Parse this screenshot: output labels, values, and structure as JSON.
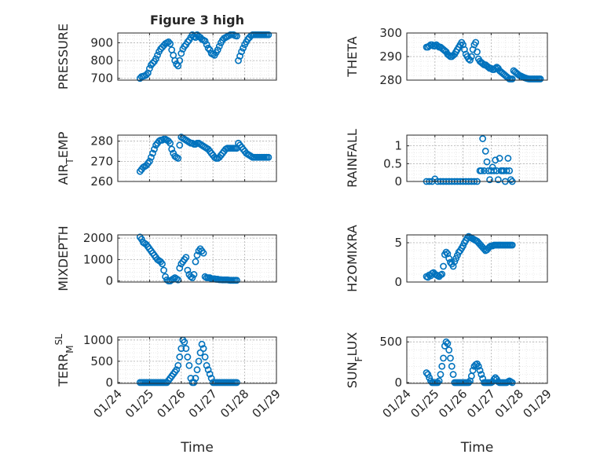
{
  "figure": {
    "title": "Figure 3 high"
  },
  "chart_data": [
    {
      "id": "pressure",
      "type": "scatter",
      "title": "Figure 3 high",
      "ylabel": "PRESSURE",
      "ylabel_sub": "",
      "ylim": [
        690,
        955
      ],
      "yticks": [
        700,
        800,
        900
      ],
      "ytick_labels": [
        "700",
        "800",
        "900"
      ],
      "grid": true,
      "x_is_time": true,
      "x": [
        0.7,
        0.75,
        0.8,
        0.85,
        0.9,
        0.95,
        1.0,
        1.05,
        1.1,
        1.15,
        1.2,
        1.25,
        1.3,
        1.35,
        1.4,
        1.45,
        1.5,
        1.55,
        1.6,
        1.65,
        1.7,
        1.75,
        1.8,
        1.85,
        1.9,
        1.95,
        2.0,
        2.05,
        2.1,
        2.15,
        2.2,
        2.25,
        2.3,
        2.35,
        2.4,
        2.45,
        2.5,
        2.55,
        2.6,
        2.65,
        2.7,
        2.75,
        2.8,
        2.85,
        2.9,
        2.95,
        3.0,
        3.05,
        3.1,
        3.15,
        3.2,
        3.25,
        3.3,
        3.35,
        3.4,
        3.45,
        3.5,
        3.55,
        3.6,
        3.65,
        3.7,
        3.75,
        3.8,
        3.85,
        3.9,
        3.95,
        4.0,
        4.05,
        4.1,
        4.15,
        4.2,
        4.25,
        4.3,
        4.35,
        4.4,
        4.45,
        4.5,
        4.55,
        4.6,
        4.65,
        4.7,
        4.75
      ],
      "values": [
        700,
        710,
        712,
        715,
        720,
        730,
        755,
        775,
        785,
        795,
        810,
        830,
        850,
        865,
        875,
        885,
        895,
        900,
        905,
        895,
        860,
        830,
        800,
        780,
        770,
        800,
        840,
        865,
        880,
        890,
        905,
        915,
        930,
        945,
        935,
        930,
        945,
        935,
        930,
        920,
        915,
        910,
        890,
        870,
        860,
        840,
        835,
        830,
        845,
        860,
        880,
        900,
        915,
        925,
        930,
        935,
        940,
        945,
        945,
        945,
        940,
        938,
        800,
        825,
        850,
        870,
        890,
        905,
        920,
        930,
        940,
        945,
        945,
        945,
        945,
        945,
        945,
        945,
        945,
        945,
        945,
        945
      ]
    },
    {
      "id": "theta",
      "type": "scatter",
      "ylabel": "THETA",
      "ylabel_sub": "",
      "ylim": [
        280,
        300
      ],
      "yticks": [
        280,
        290,
        300
      ],
      "ytick_labels": [
        "280",
        "290",
        "300"
      ],
      "grid": true,
      "x_is_time": true,
      "x": [
        0.7,
        0.75,
        0.8,
        0.85,
        0.9,
        0.95,
        1.0,
        1.05,
        1.1,
        1.15,
        1.2,
        1.25,
        1.3,
        1.35,
        1.4,
        1.45,
        1.5,
        1.55,
        1.6,
        1.65,
        1.7,
        1.75,
        1.8,
        1.85,
        1.9,
        1.95,
        2.0,
        2.05,
        2.1,
        2.15,
        2.2,
        2.25,
        2.3,
        2.35,
        2.4,
        2.45,
        2.5,
        2.55,
        2.6,
        2.65,
        2.7,
        2.75,
        2.8,
        2.85,
        2.9,
        2.95,
        3.0,
        3.05,
        3.1,
        3.15,
        3.2,
        3.25,
        3.3,
        3.35,
        3.4,
        3.45,
        3.5,
        3.55,
        3.6,
        3.65,
        3.7,
        3.75,
        3.8,
        3.85,
        3.9,
        3.95,
        4.0,
        4.05,
        4.1,
        4.15,
        4.2,
        4.25,
        4.3,
        4.35,
        4.4,
        4.45,
        4.5,
        4.55,
        4.6,
        4.65,
        4.7,
        4.75
      ],
      "values": [
        294,
        294,
        294.5,
        295,
        295,
        294.5,
        294.5,
        295,
        294.5,
        294,
        294,
        293.5,
        293,
        292.5,
        292,
        291,
        290.5,
        290,
        290,
        290.5,
        291,
        292,
        293,
        294,
        295,
        296,
        295,
        293,
        291,
        290,
        289,
        288.5,
        290,
        293,
        295,
        296,
        292,
        289,
        288,
        287.5,
        287,
        286.5,
        286.5,
        286,
        285.5,
        285,
        285,
        284.5,
        284.5,
        285,
        285.5,
        285,
        284,
        283.5,
        283,
        282.5,
        282,
        281.5,
        281,
        280.5,
        280.5,
        280.5,
        284,
        283.5,
        283,
        282.5,
        282,
        281.8,
        281.5,
        281.2,
        281,
        280.8,
        280.6,
        280.5,
        280.5,
        280.5,
        280.5,
        280.5,
        280.5,
        280.5,
        280.5,
        280.5
      ]
    },
    {
      "id": "airtemp",
      "type": "scatter",
      "ylabel": "AIR",
      "ylabel_sub": "T",
      "ylabel_suffix": "EMP",
      "ylim": [
        260,
        283
      ],
      "yticks": [
        260,
        270,
        280
      ],
      "ytick_labels": [
        "260",
        "270",
        "280"
      ],
      "grid": true,
      "x_is_time": true,
      "x": [
        0.7,
        0.75,
        0.8,
        0.85,
        0.9,
        0.95,
        1.0,
        1.05,
        1.1,
        1.15,
        1.2,
        1.25,
        1.3,
        1.35,
        1.4,
        1.45,
        1.5,
        1.55,
        1.6,
        1.65,
        1.7,
        1.75,
        1.8,
        1.85,
        1.9,
        1.95,
        2.0,
        2.05,
        2.1,
        2.15,
        2.2,
        2.25,
        2.3,
        2.35,
        2.4,
        2.45,
        2.5,
        2.55,
        2.6,
        2.65,
        2.7,
        2.75,
        2.8,
        2.85,
        2.9,
        2.95,
        3.0,
        3.05,
        3.1,
        3.15,
        3.2,
        3.25,
        3.3,
        3.35,
        3.4,
        3.45,
        3.5,
        3.55,
        3.6,
        3.65,
        3.7,
        3.75,
        3.8,
        3.85,
        3.9,
        3.95,
        4.0,
        4.05,
        4.1,
        4.15,
        4.2,
        4.25,
        4.3,
        4.35,
        4.4,
        4.45,
        4.5,
        4.55,
        4.6,
        4.65,
        4.7,
        4.75
      ],
      "values": [
        265,
        266,
        267,
        267.5,
        268,
        269,
        270,
        272,
        274,
        276,
        278,
        279,
        280,
        280.5,
        280.5,
        281,
        281,
        280.5,
        280,
        279,
        276,
        274,
        272.5,
        272,
        271.5,
        278,
        282,
        281.5,
        281,
        280.5,
        280,
        279.5,
        279,
        279,
        278.5,
        278.5,
        279,
        279,
        278.5,
        278,
        277.5,
        277,
        276.5,
        276,
        275,
        274,
        273,
        272,
        271.5,
        271.5,
        272,
        273,
        274,
        275,
        276,
        276.5,
        276.5,
        276.5,
        276.5,
        276.5,
        276.5,
        276.5,
        279,
        278,
        277,
        276,
        275,
        274,
        273.5,
        273,
        272.5,
        272,
        272,
        272,
        272,
        272,
        272,
        272,
        272,
        272,
        272,
        272
      ]
    },
    {
      "id": "rainfall",
      "type": "scatter",
      "ylabel": "RAINFALL",
      "ylabel_sub": "",
      "ylim": [
        0,
        1.3
      ],
      "yticks": [
        0,
        0.5,
        1
      ],
      "ytick_labels": [
        "0",
        "0.5",
        "1"
      ],
      "grid": true,
      "x_is_time": true,
      "x": [
        0.7,
        0.8,
        0.9,
        1.0,
        1.1,
        1.2,
        1.3,
        1.4,
        1.5,
        1.6,
        1.7,
        1.8,
        1.9,
        2.0,
        2.1,
        2.2,
        2.3,
        2.4,
        2.5,
        2.6,
        2.65,
        2.7,
        2.75,
        2.8,
        2.85,
        2.9,
        2.95,
        3.0,
        3.05,
        3.1,
        3.15,
        3.2,
        3.25,
        3.3,
        3.35,
        3.4,
        3.45,
        3.5,
        3.55,
        3.6,
        3.65,
        3.7,
        3.75
      ],
      "values": [
        0,
        0,
        0,
        0.07,
        0,
        0,
        0,
        0,
        0,
        0,
        0,
        0,
        0,
        0,
        0,
        0,
        0,
        0,
        0,
        0.3,
        0.3,
        1.2,
        0.3,
        0.85,
        0.55,
        0.3,
        0.05,
        0.3,
        0.4,
        0.3,
        0.6,
        0.3,
        0.05,
        0.65,
        0.3,
        0.3,
        0.3,
        0,
        0.3,
        0.65,
        0.3,
        0.05,
        0
      ]
    },
    {
      "id": "mixdepth",
      "type": "scatter",
      "ylabel": "MIXDEPTH",
      "ylabel_sub": "",
      "ylim": [
        -50,
        2150
      ],
      "yticks": [
        0,
        1000,
        2000
      ],
      "ytick_labels": [
        "0",
        "1000",
        "2000"
      ],
      "grid": true,
      "x_is_time": true,
      "x": [
        0.7,
        0.75,
        0.8,
        0.85,
        0.9,
        0.95,
        1.0,
        1.05,
        1.1,
        1.15,
        1.2,
        1.25,
        1.3,
        1.35,
        1.4,
        1.45,
        1.5,
        1.55,
        1.6,
        1.65,
        1.7,
        1.75,
        1.8,
        1.85,
        1.9,
        1.95,
        2.0,
        2.05,
        2.1,
        2.15,
        2.2,
        2.25,
        2.3,
        2.35,
        2.4,
        2.45,
        2.5,
        2.55,
        2.6,
        2.65,
        2.7,
        2.75,
        2.8,
        2.85,
        2.9,
        2.95,
        3.0,
        3.05,
        3.1,
        3.15,
        3.2,
        3.25,
        3.3,
        3.35,
        3.4,
        3.45,
        3.5,
        3.55,
        3.6,
        3.65,
        3.7,
        3.75
      ],
      "values": [
        2050,
        1950,
        1800,
        1750,
        1700,
        1600,
        1500,
        1400,
        1300,
        1200,
        1100,
        1000,
        950,
        900,
        800,
        500,
        200,
        50,
        0,
        0,
        50,
        100,
        150,
        100,
        50,
        600,
        800,
        900,
        1000,
        1100,
        500,
        300,
        200,
        150,
        300,
        900,
        1200,
        1400,
        1500,
        1400,
        1300,
        200,
        150,
        150,
        150,
        100,
        100,
        100,
        80,
        80,
        60,
        60,
        50,
        50,
        50,
        50,
        40,
        30,
        30,
        30,
        30,
        30
      ]
    },
    {
      "id": "h2omixra",
      "type": "scatter",
      "ylabel": "H2OMIXRA",
      "ylabel_sub": "",
      "ylim": [
        0,
        6
      ],
      "yticks": [
        0,
        5
      ],
      "ytick_labels": [
        "0",
        "5"
      ],
      "grid": true,
      "x_is_time": true,
      "x": [
        0.7,
        0.75,
        0.8,
        0.85,
        0.9,
        0.95,
        1.0,
        1.05,
        1.1,
        1.15,
        1.2,
        1.25,
        1.3,
        1.35,
        1.4,
        1.45,
        1.5,
        1.55,
        1.6,
        1.65,
        1.7,
        1.75,
        1.8,
        1.85,
        1.9,
        1.95,
        2.0,
        2.05,
        2.1,
        2.15,
        2.2,
        2.25,
        2.3,
        2.35,
        2.4,
        2.45,
        2.5,
        2.55,
        2.6,
        2.65,
        2.7,
        2.75,
        2.8,
        2.85,
        2.9,
        2.95,
        3.0,
        3.05,
        3.1,
        3.15,
        3.2,
        3.25,
        3.3,
        3.35,
        3.4,
        3.45,
        3.5,
        3.55,
        3.6,
        3.65,
        3.7,
        3.75
      ],
      "values": [
        0.7,
        0.6,
        0.9,
        0.8,
        1.1,
        1.2,
        1.0,
        0.9,
        0.8,
        0.7,
        0.9,
        1.0,
        2.0,
        3.5,
        3.8,
        3.6,
        3.0,
        2.5,
        2.3,
        2.0,
        2.6,
        3.0,
        3.4,
        3.8,
        4.0,
        4.3,
        4.6,
        5.0,
        5.3,
        5.6,
        5.8,
        5.7,
        5.6,
        5.5,
        5.4,
        5.3,
        5.2,
        5.0,
        4.8,
        4.6,
        4.4,
        4.2,
        4.0,
        4.1,
        4.3,
        4.5,
        4.6,
        4.6,
        4.7,
        4.7,
        4.7,
        4.7,
        4.7,
        4.7,
        4.7,
        4.7,
        4.7,
        4.7,
        4.7,
        4.7,
        4.7,
        4.7
      ]
    },
    {
      "id": "terrmsl",
      "type": "scatter",
      "ylabel": "TERR",
      "ylabel_sub": "M",
      "ylabel_sup": "SL",
      "ylim": [
        -20,
        1070
      ],
      "yticks": [
        0,
        500,
        1000
      ],
      "ytick_labels": [
        "0",
        "500",
        "1000"
      ],
      "grid": true,
      "x_is_time": true,
      "xlabel": "Time",
      "x": [
        0.7,
        0.75,
        0.8,
        0.85,
        0.9,
        0.95,
        1.0,
        1.05,
        1.1,
        1.15,
        1.2,
        1.25,
        1.3,
        1.35,
        1.4,
        1.45,
        1.5,
        1.55,
        1.6,
        1.65,
        1.7,
        1.75,
        1.8,
        1.85,
        1.9,
        1.95,
        2.0,
        2.05,
        2.1,
        2.15,
        2.2,
        2.25,
        2.3,
        2.35,
        2.4,
        2.45,
        2.5,
        2.55,
        2.6,
        2.65,
        2.7,
        2.75,
        2.8,
        2.85,
        2.9,
        2.95,
        3.0,
        3.05,
        3.1,
        3.15,
        3.2,
        3.25,
        3.3,
        3.35,
        3.4,
        3.45,
        3.5,
        3.55,
        3.6,
        3.65,
        3.7,
        3.75
      ],
      "values": [
        0,
        0,
        0,
        0,
        0,
        0,
        0,
        0,
        0,
        0,
        0,
        0,
        0,
        0,
        0,
        0,
        0,
        0,
        50,
        100,
        150,
        200,
        250,
        300,
        400,
        600,
        800,
        1000,
        950,
        800,
        600,
        400,
        100,
        0,
        0,
        100,
        300,
        500,
        700,
        900,
        800,
        600,
        400,
        300,
        200,
        100,
        0,
        0,
        0,
        0,
        0,
        0,
        0,
        0,
        0,
        0,
        0,
        0,
        0,
        0,
        0,
        0
      ]
    },
    {
      "id": "sunflux",
      "type": "scatter",
      "ylabel": "SUN",
      "ylabel_sub": "F",
      "ylabel_suffix": "LUX",
      "ylim": [
        -10,
        560
      ],
      "yticks": [
        0,
        500
      ],
      "ytick_labels": [
        "0",
        "500"
      ],
      "grid": true,
      "x_is_time": true,
      "xlabel": "Time",
      "x": [
        0.7,
        0.75,
        0.8,
        0.85,
        0.9,
        0.95,
        1.0,
        1.05,
        1.1,
        1.15,
        1.2,
        1.25,
        1.3,
        1.35,
        1.4,
        1.45,
        1.5,
        1.55,
        1.6,
        1.65,
        1.7,
        1.75,
        1.8,
        1.85,
        1.9,
        1.95,
        2.0,
        2.05,
        2.1,
        2.15,
        2.2,
        2.25,
        2.3,
        2.35,
        2.4,
        2.45,
        2.5,
        2.55,
        2.6,
        2.65,
        2.7,
        2.75,
        2.8,
        2.85,
        2.9,
        2.95,
        3.0,
        3.05,
        3.1,
        3.15,
        3.2,
        3.25,
        3.3,
        3.35,
        3.4,
        3.45,
        3.5,
        3.55,
        3.6,
        3.65,
        3.7,
        3.75
      ],
      "values": [
        120,
        100,
        60,
        20,
        0,
        0,
        0,
        0,
        0,
        20,
        100,
        200,
        300,
        450,
        500,
        480,
        400,
        300,
        200,
        100,
        0,
        0,
        0,
        0,
        0,
        0,
        0,
        0,
        0,
        0,
        0,
        20,
        80,
        150,
        200,
        220,
        230,
        200,
        150,
        100,
        50,
        0,
        0,
        0,
        0,
        0,
        0,
        10,
        40,
        60,
        40,
        10,
        0,
        0,
        0,
        0,
        0,
        0,
        10,
        20,
        10,
        0
      ]
    }
  ],
  "x_axis": {
    "tick_values": [
      0,
      1,
      2,
      3,
      4,
      5
    ],
    "tick_labels": [
      "01/24",
      "01/25",
      "01/26",
      "01/27",
      "01/28",
      "01/29"
    ],
    "xlim": [
      0,
      5
    ],
    "label": "Time"
  },
  "style": {
    "marker_color": "#0072BD",
    "grid_color": "#b0b0b0",
    "axis_color": "#262626"
  }
}
